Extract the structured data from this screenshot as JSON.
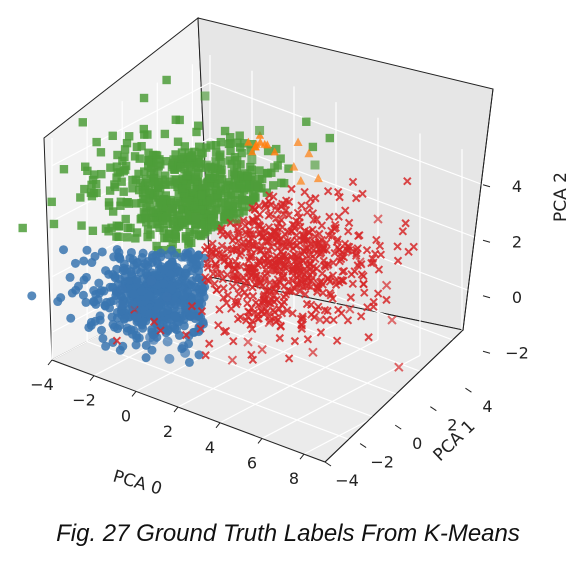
{
  "caption": "Fig. 27 Ground Truth Labels From K-Means",
  "chart_data": {
    "type": "scatter3d",
    "title": "",
    "xlabel": "PCA 0",
    "ylabel": "PCA 1",
    "zlabel": "PCA 2",
    "xlim": [
      -4,
      9
    ],
    "ylim": [
      -4,
      5
    ],
    "zlim": [
      -3,
      5
    ],
    "x_ticks": [
      "−4",
      "−2",
      "0",
      "2",
      "4",
      "6",
      "8"
    ],
    "y_ticks": [
      "−4",
      "−2",
      "0",
      "2",
      "4"
    ],
    "z_ticks": [
      "−2",
      "0",
      "2",
      "4"
    ],
    "grid": true,
    "legend": "none",
    "series": [
      {
        "color": "#3a75b0",
        "marker": "circle",
        "points": [
          [
            -2.8,
            -1.5,
            -1.5
          ],
          [
            -2.5,
            -1.0,
            -2.0
          ],
          [
            -2.0,
            -1.8,
            -1.2
          ],
          [
            -1.5,
            -1.2,
            -2.5
          ],
          [
            -1.0,
            -2.0,
            -2.0
          ],
          [
            -0.5,
            -1.5,
            -2.8
          ],
          [
            0.0,
            -2.2,
            -1.8
          ],
          [
            -2.2,
            -0.5,
            -0.8
          ],
          [
            -1.2,
            -0.8,
            -1.0
          ],
          [
            0.5,
            -1.8,
            -2.2
          ],
          [
            -3.2,
            -1.0,
            -1.2
          ],
          [
            1.0,
            -2.5,
            -1.6
          ]
        ]
      },
      {
        "color": "#d62728",
        "marker": "x",
        "points": [
          [
            2.0,
            0.5,
            0.0
          ],
          [
            3.0,
            0.0,
            -1.0
          ],
          [
            4.0,
            1.0,
            0.5
          ],
          [
            5.0,
            0.5,
            -0.5
          ],
          [
            3.5,
            -1.0,
            -1.5
          ],
          [
            4.5,
            1.5,
            1.0
          ],
          [
            6.0,
            1.0,
            0.0
          ],
          [
            5.5,
            -0.5,
            -1.2
          ],
          [
            2.5,
            -1.5,
            -2.0
          ],
          [
            7.5,
            2.0,
            -2.0
          ],
          [
            6.5,
            2.5,
            0.5
          ],
          [
            3.8,
            0.2,
            2.0
          ]
        ]
      },
      {
        "color": "#4e9d3a",
        "marker": "square",
        "points": [
          [
            -1.0,
            1.0,
            2.5
          ],
          [
            0.0,
            1.5,
            3.0
          ],
          [
            1.0,
            0.5,
            2.0
          ],
          [
            -2.0,
            0.5,
            1.5
          ],
          [
            0.5,
            2.0,
            3.5
          ],
          [
            -1.5,
            1.8,
            2.8
          ],
          [
            1.5,
            1.0,
            3.2
          ],
          [
            -0.5,
            0.0,
            1.8
          ],
          [
            -2.5,
            1.2,
            2.2
          ],
          [
            2.0,
            1.5,
            3.8
          ],
          [
            0.2,
            2.8,
            4.2
          ],
          [
            -3.0,
            0.8,
            2.5
          ]
        ]
      },
      {
        "color": "#ff7f0e",
        "marker": "triangle",
        "points": [
          [
            2.5,
            2.0,
            3.8
          ],
          [
            3.0,
            1.8,
            3.5
          ],
          [
            2.8,
            2.5,
            4.2
          ],
          [
            3.5,
            2.2,
            3.6
          ],
          [
            2.2,
            2.6,
            4.4
          ]
        ]
      }
    ]
  }
}
